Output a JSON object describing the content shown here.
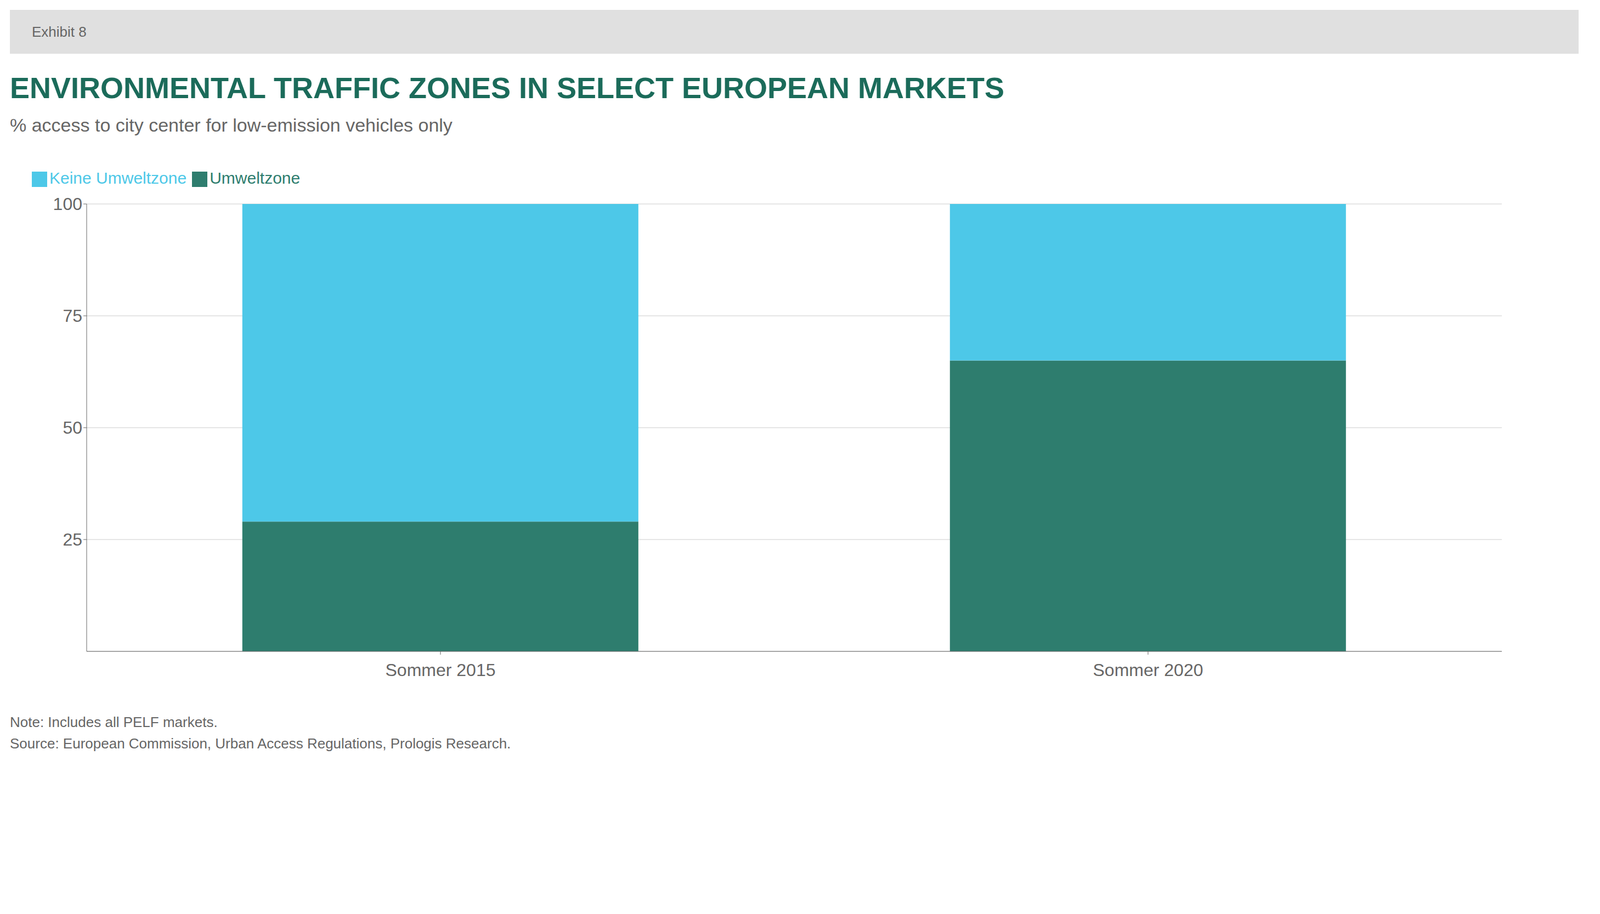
{
  "chart_data": {
    "type": "bar",
    "title": "ENVIRONMENTAL TRAFFIC ZONES IN SELECT EUROPEAN MARKETS",
    "subtitle": "% access to city center for low-emission vehicles only",
    "annotations": [
      "Exhibit 8",
      "Note: Includes all PELF markets.",
      "Source: European Commission, Urban Access Regulations, Prologis Research."
    ],
    "categories": [
      "Sommer 2015",
      "Sommer 2020"
    ],
    "series": [
      {
        "name": "Umweltzone",
        "color": "#2E7D6E",
        "values": [
          29,
          65
        ]
      },
      {
        "name": "Keine Umweltzone",
        "color": "#4DC8E8",
        "values": [
          71,
          35
        ]
      }
    ],
    "stacked": true,
    "ylim": [
      0,
      100
    ],
    "yticks": [
      25,
      50,
      75,
      100
    ],
    "grid": true,
    "legend": "upper left"
  }
}
